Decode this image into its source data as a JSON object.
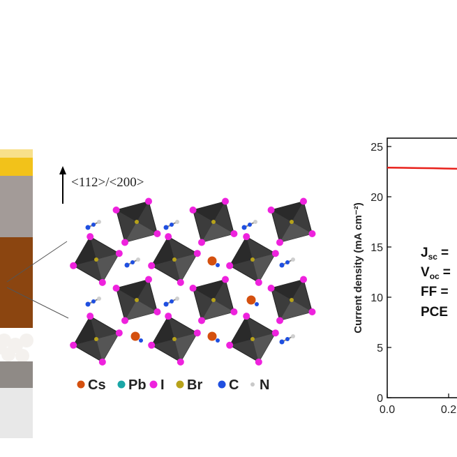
{
  "crystal": {
    "direction_label": "<112>/<200>"
  },
  "legend": [
    {
      "symbol": "Cs",
      "color": "#d4500f"
    },
    {
      "symbol": "Pb",
      "color": "#1aa6a6"
    },
    {
      "symbol": "I",
      "color": "#ee22dd"
    },
    {
      "symbol": "Br",
      "color": "#b7a21a"
    },
    {
      "symbol": "C",
      "color": "#1f4fe0"
    },
    {
      "symbol": "N",
      "color": "#c9c9c9"
    }
  ],
  "device_layers": [
    {
      "name": "top-electrode",
      "color": "#f2c21a"
    },
    {
      "name": "gray-layer",
      "color": "#a39b98"
    },
    {
      "name": "perovskite-layer",
      "color": "#8b4510"
    },
    {
      "name": "bottom-gray-layer",
      "color": "#8f8a86"
    },
    {
      "name": "substrate",
      "color": "#e8e8e8"
    }
  ],
  "chart_data": {
    "type": "line",
    "title": "",
    "xlabel": "",
    "ylabel": "Current density (mA cm⁻²)",
    "xlim": [
      0.0,
      0.25
    ],
    "ylim": [
      0,
      25
    ],
    "x_ticks": [
      "0.0",
      "0.2"
    ],
    "y_ticks": [
      "0",
      "5",
      "10",
      "15",
      "20",
      "25"
    ],
    "series": [
      {
        "color": "#e8201a",
        "points": [
          [
            0.0,
            22.9
          ],
          [
            0.05,
            22.88
          ],
          [
            0.1,
            22.86
          ],
          [
            0.15,
            22.84
          ],
          [
            0.2,
            22.8
          ],
          [
            0.25,
            22.78
          ]
        ]
      }
    ],
    "annotations": [
      "J",
      "V",
      "FF =",
      "PCE"
    ],
    "annotation_subscripts": [
      "sc",
      "oc"
    ],
    "annotation_equals": "="
  }
}
